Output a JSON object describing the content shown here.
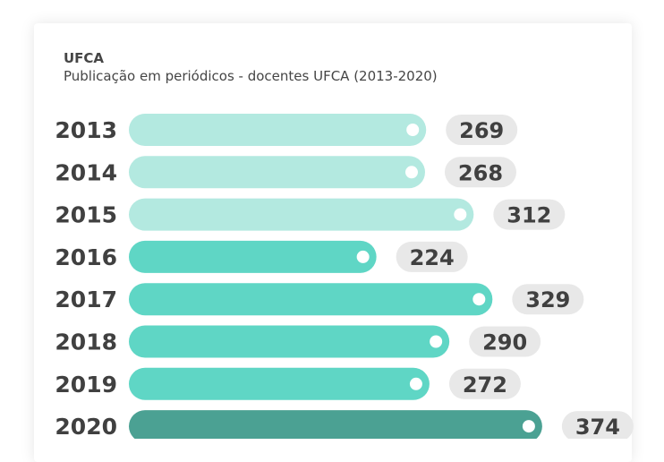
{
  "header": {
    "org": "UFCA",
    "title": "Publicação em periódicos - docentes UFCA (2013-2020)"
  },
  "colors": {
    "light": "#b3e9e0",
    "medium": "#5fd6c5",
    "dark": "#4ba193",
    "pill": "#e8e8e8",
    "text": "#404040"
  },
  "chart_data": {
    "type": "bar",
    "orientation": "horizontal",
    "title": "Publicação em periódicos - docentes UFCA (2013-2020)",
    "categories": [
      "2013",
      "2014",
      "2015",
      "2016",
      "2017",
      "2018",
      "2019",
      "2020"
    ],
    "values": [
      269,
      268,
      312,
      224,
      329,
      290,
      272,
      374
    ],
    "bar_colors": [
      "light",
      "light",
      "light",
      "medium",
      "medium",
      "medium",
      "medium",
      "dark"
    ],
    "xlim": [
      0,
      374
    ],
    "grid": false,
    "legend": "none"
  }
}
